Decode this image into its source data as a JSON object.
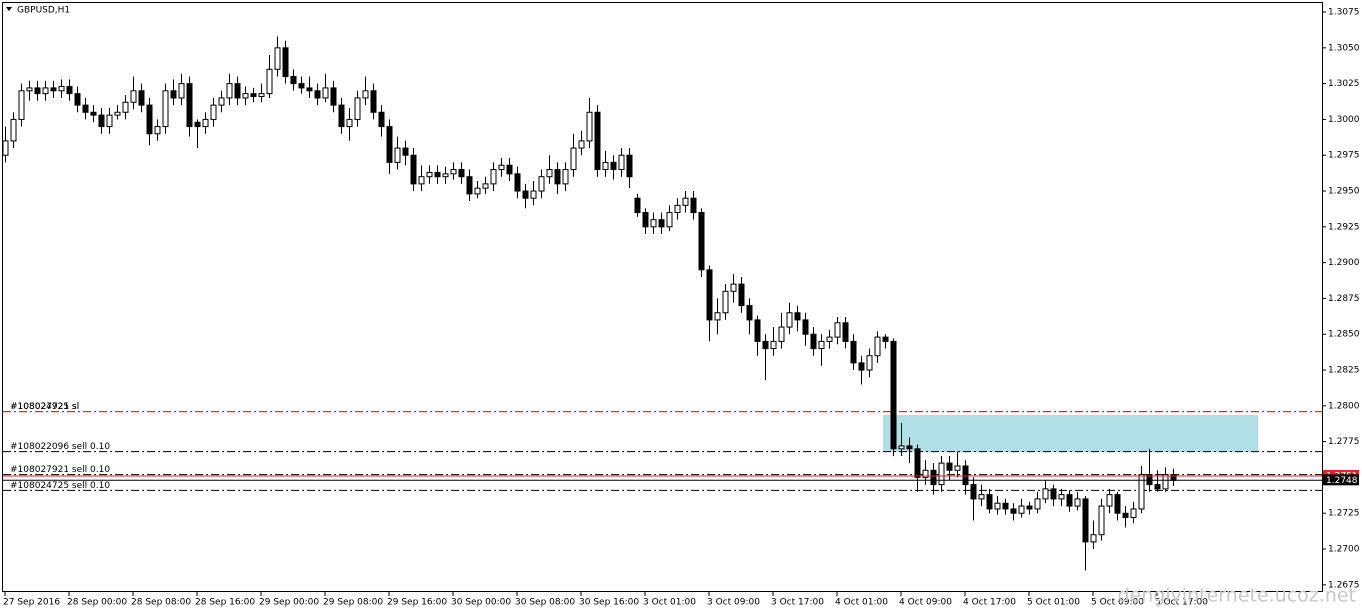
{
  "chart_data": {
    "type": "candlestick",
    "title": "GBPUSD,H1",
    "up_color": "#ffffff",
    "down_color": "#000000",
    "ylim": [
      1.267,
      1.3082
    ],
    "yticks": [
      1.3075,
      {
        "value": 1.305,
        "label": "1.3050"
      },
      1.3025,
      {
        "value": 1.3,
        "label": "1.3000"
      },
      1.2975,
      {
        "value": 1.295,
        "label": "1.2950"
      },
      1.2925,
      {
        "value": 1.29,
        "label": "1.2900"
      },
      1.2875,
      {
        "value": 1.285,
        "label": "1.2850"
      },
      1.2825,
      {
        "value": 1.28,
        "label": "1.2800"
      },
      1.2775,
      {
        "value": 1.275,
        "label": "1.2750"
      },
      1.2725,
      {
        "value": 1.27,
        "label": "1.2700"
      },
      1.2675
    ],
    "bid": 1.2748,
    "ask": 1.2751,
    "orders": [
      {
        "label": "#108027921 sl",
        "value": 1.2796,
        "color": "#e8202a"
      },
      {
        "label": "#108024725 sl",
        "value": 1.2796,
        "color": "#e8202a"
      },
      {
        "label": "#108022096 sell 0.10",
        "value": 1.2768,
        "color": "#000000"
      },
      {
        "label": "#108027921 sell 0.10",
        "value": 1.2752,
        "color": "#000000"
      },
      {
        "label": "#108024725 sell 0.10",
        "value": 1.2741,
        "color": "#000000"
      }
    ],
    "watermark": "dengivinternete.ucoz.net",
    "categories": [
      "27 Sep 2016",
      null,
      null,
      null,
      null,
      null,
      null,
      null,
      "28 Sep 00:00",
      null,
      null,
      null,
      null,
      null,
      null,
      null,
      "28 Sep 08:00",
      null,
      null,
      null,
      null,
      null,
      null,
      null,
      "28 Sep 16:00",
      null,
      null,
      null,
      null,
      null,
      null,
      null,
      "29 Sep 00:00",
      null,
      null,
      null,
      null,
      null,
      null,
      null,
      "29 Sep 08:00",
      null,
      null,
      null,
      null,
      null,
      null,
      null,
      "29 Sep 16:00",
      null,
      null,
      null,
      null,
      null,
      null,
      null,
      "30 Sep 00:00",
      null,
      null,
      null,
      null,
      null,
      null,
      null,
      "30 Sep 08:00",
      null,
      null,
      null,
      null,
      null,
      null,
      null,
      "30 Sep 16:00",
      null,
      null,
      null,
      null,
      null,
      null,
      null,
      "3 Oct 01:00",
      null,
      null,
      null,
      null,
      null,
      null,
      null,
      "3 Oct 09:00",
      null,
      null,
      null,
      null,
      null,
      null,
      null,
      "3 Oct 17:00",
      null,
      null,
      null,
      null,
      null,
      null,
      null,
      "4 Oct 01:00",
      null,
      null,
      null,
      null,
      null,
      null,
      null,
      "4 Oct 09:00",
      null,
      null,
      null,
      null,
      null,
      null,
      null,
      "4 Oct 17:00",
      null,
      null,
      null,
      null,
      null,
      null,
      null,
      "5 Oct 01:00",
      null,
      null,
      null,
      null,
      null,
      null,
      null,
      "5 Oct 09:00",
      null,
      null,
      null,
      null,
      null,
      null,
      null,
      "5 Oct 17:00",
      null,
      null
    ],
    "candles": [
      [
        1.2975,
        1.2995,
        1.297,
        1.2985
      ],
      [
        1.2985,
        1.3005,
        1.298,
        1.3
      ],
      [
        1.3,
        1.3025,
        1.2995,
        1.302
      ],
      [
        1.302,
        1.3027,
        1.3013,
        1.3022
      ],
      [
        1.3022,
        1.3027,
        1.3013,
        1.3018
      ],
      [
        1.3018,
        1.3027,
        1.3013,
        1.3022
      ],
      [
        1.3022,
        1.3027,
        1.3015,
        1.302
      ],
      [
        1.302,
        1.3028,
        1.3015,
        1.3023
      ],
      [
        1.3023,
        1.3028,
        1.3013,
        1.3018
      ],
      [
        1.3018,
        1.3023,
        1.3005,
        1.301
      ],
      [
        1.301,
        1.3015,
        1.3,
        1.3005
      ],
      [
        1.3005,
        1.301,
        1.2998,
        1.3003
      ],
      [
        1.3003,
        1.3008,
        1.299,
        1.2995
      ],
      [
        1.2995,
        1.3008,
        1.299,
        1.3003
      ],
      [
        1.3003,
        1.301,
        1.3,
        1.3005
      ],
      [
        1.3005,
        1.3017,
        1.3,
        1.3012
      ],
      [
        1.3012,
        1.303,
        1.3007,
        1.302
      ],
      [
        1.302,
        1.3025,
        1.3005,
        1.301
      ],
      [
        1.301,
        1.3015,
        1.2982,
        1.299
      ],
      [
        1.299,
        1.3,
        1.2985,
        1.2995
      ],
      [
        1.2995,
        1.3025,
        1.299,
        1.302
      ],
      [
        1.302,
        1.3028,
        1.301,
        1.3015
      ],
      [
        1.3015,
        1.3032,
        1.301,
        1.3025
      ],
      [
        1.3025,
        1.303,
        1.2988,
        1.2995
      ],
      [
        1.2998,
        1.3,
        1.298,
        1.2995
      ],
      [
        1.2995,
        1.3005,
        1.299,
        1.3
      ],
      [
        1.3,
        1.3015,
        1.2995,
        1.301
      ],
      [
        1.301,
        1.302,
        1.3005,
        1.3015
      ],
      [
        1.3015,
        1.3032,
        1.301,
        1.3025
      ],
      [
        1.3025,
        1.303,
        1.301,
        1.3015
      ],
      [
        1.3015,
        1.3023,
        1.301,
        1.3018
      ],
      [
        1.3018,
        1.3022,
        1.3012,
        1.3016
      ],
      [
        1.3016,
        1.3025,
        1.3012,
        1.3018
      ],
      [
        1.3018,
        1.3045,
        1.3015,
        1.3035
      ],
      [
        1.3035,
        1.3058,
        1.303,
        1.305
      ],
      [
        1.305,
        1.3055,
        1.3025,
        1.303
      ],
      [
        1.303,
        1.3035,
        1.302,
        1.3025
      ],
      [
        1.3025,
        1.303,
        1.3018,
        1.3022
      ],
      [
        1.3022,
        1.303,
        1.3015,
        1.302
      ],
      [
        1.302,
        1.3025,
        1.301,
        1.3015
      ],
      [
        1.3015,
        1.3032,
        1.3012,
        1.3022
      ],
      [
        1.3022,
        1.3027,
        1.3005,
        1.301
      ],
      [
        1.301,
        1.3015,
        1.299,
        1.2995
      ],
      [
        1.2995,
        1.3008,
        1.2985,
        1.3
      ],
      [
        1.3,
        1.302,
        1.2995,
        1.3015
      ],
      [
        1.3015,
        1.303,
        1.301,
        1.302
      ],
      [
        1.302,
        1.3025,
        1.3,
        1.3005
      ],
      [
        1.3005,
        1.301,
        1.2988,
        1.2995
      ],
      [
        1.2995,
        1.3,
        1.2962,
        1.297
      ],
      [
        1.297,
        1.2988,
        1.2965,
        1.298
      ],
      [
        1.298,
        1.2985,
        1.2968,
        1.2975
      ],
      [
        1.2975,
        1.298,
        1.295,
        1.2955
      ],
      [
        1.2955,
        1.2968,
        1.295,
        1.296
      ],
      [
        1.296,
        1.2968,
        1.2955,
        1.2963
      ],
      [
        1.2963,
        1.2968,
        1.2955,
        1.296
      ],
      [
        1.296,
        1.2967,
        1.2955,
        1.2962
      ],
      [
        1.2962,
        1.297,
        1.2958,
        1.2965
      ],
      [
        1.2965,
        1.297,
        1.2955,
        1.296
      ],
      [
        1.296,
        1.2965,
        1.2943,
        1.2948
      ],
      [
        1.2948,
        1.2957,
        1.2945,
        1.2952
      ],
      [
        1.2952,
        1.296,
        1.2948,
        1.2955
      ],
      [
        1.2955,
        1.297,
        1.295,
        1.2965
      ],
      [
        1.2965,
        1.2973,
        1.296,
        1.2968
      ],
      [
        1.2968,
        1.2973,
        1.2957,
        1.2962
      ],
      [
        1.2962,
        1.2967,
        1.2945,
        1.295
      ],
      [
        1.295,
        1.2955,
        1.2938,
        1.2945
      ],
      [
        1.2945,
        1.2957,
        1.294,
        1.295
      ],
      [
        1.295,
        1.2965,
        1.2945,
        1.296
      ],
      [
        1.296,
        1.2975,
        1.2955,
        1.2965
      ],
      [
        1.2965,
        1.297,
        1.2948,
        1.2955
      ],
      [
        1.2955,
        1.297,
        1.295,
        1.2965
      ],
      [
        1.2965,
        1.299,
        1.296,
        1.298
      ],
      [
        1.298,
        1.2992,
        1.2975,
        1.2985
      ],
      [
        1.2985,
        1.3015,
        1.298,
        1.3005
      ],
      [
        1.3005,
        1.301,
        1.296,
        1.2965
      ],
      [
        1.2965,
        1.2978,
        1.296,
        1.297
      ],
      [
        1.297,
        1.2975,
        1.2958,
        1.2965
      ],
      [
        1.2965,
        1.298,
        1.296,
        1.2975
      ],
      [
        1.2975,
        1.298,
        1.2952,
        1.296
      ],
      [
        1.2945,
        1.2948,
        1.2932,
        1.2935
      ],
      [
        1.2935,
        1.2938,
        1.292,
        1.2925
      ],
      [
        1.2925,
        1.2935,
        1.292,
        1.293
      ],
      [
        1.293,
        1.2935,
        1.292,
        1.2925
      ],
      [
        1.2925,
        1.294,
        1.2922,
        1.2935
      ],
      [
        1.2935,
        1.2945,
        1.293,
        1.294
      ],
      [
        1.294,
        1.295,
        1.2935,
        1.2945
      ],
      [
        1.2945,
        1.295,
        1.293,
        1.2935
      ],
      [
        1.2935,
        1.2938,
        1.289,
        1.2895
      ],
      [
        1.2895,
        1.2898,
        1.2845,
        1.286
      ],
      [
        1.286,
        1.2875,
        1.285,
        1.2865
      ],
      [
        1.2865,
        1.2885,
        1.286,
        1.288
      ],
      [
        1.288,
        1.2892,
        1.2872,
        1.2885
      ],
      [
        1.2885,
        1.289,
        1.2865,
        1.287
      ],
      [
        1.287,
        1.2875,
        1.285,
        1.286
      ],
      [
        1.286,
        1.2863,
        1.2835,
        1.2845
      ],
      [
        1.2845,
        1.285,
        1.2818,
        1.284
      ],
      [
        1.284,
        1.2855,
        1.2835,
        1.2845
      ],
      [
        1.2845,
        1.2865,
        1.284,
        1.2855
      ],
      [
        1.2855,
        1.2872,
        1.285,
        1.2865
      ],
      [
        1.2865,
        1.287,
        1.2852,
        1.286
      ],
      [
        1.286,
        1.2865,
        1.2842,
        1.285
      ],
      [
        1.285,
        1.2855,
        1.2835,
        1.284
      ],
      [
        1.284,
        1.285,
        1.2828,
        1.2845
      ],
      [
        1.2845,
        1.2853,
        1.284,
        1.2848
      ],
      [
        1.2848,
        1.2862,
        1.2843,
        1.2858
      ],
      [
        1.2858,
        1.2862,
        1.284,
        1.2845
      ],
      [
        1.2845,
        1.285,
        1.2825,
        1.283
      ],
      [
        1.283,
        1.2835,
        1.2815,
        1.2825
      ],
      [
        1.2825,
        1.284,
        1.282,
        1.2835
      ],
      [
        1.2835,
        1.2852,
        1.283,
        1.2848
      ],
      [
        1.2848,
        1.285,
        1.284,
        1.2845
      ],
      [
        1.2845,
        1.2847,
        1.2765,
        1.277
      ],
      [
        1.277,
        1.2788,
        1.2765,
        1.2772
      ],
      [
        1.2772,
        1.2778,
        1.276,
        1.277
      ],
      [
        1.277,
        1.2773,
        1.274,
        1.275
      ],
      [
        1.275,
        1.2762,
        1.2745,
        1.2755
      ],
      [
        1.2755,
        1.276,
        1.2738,
        1.2745
      ],
      [
        1.2745,
        1.2765,
        1.274,
        1.276
      ],
      [
        1.276,
        1.2765,
        1.2748,
        1.2755
      ],
      [
        1.2755,
        1.2768,
        1.275,
        1.2758
      ],
      [
        1.2758,
        1.2762,
        1.2738,
        1.2745
      ],
      [
        1.2745,
        1.275,
        1.272,
        1.2735
      ],
      [
        1.2735,
        1.2745,
        1.273,
        1.2738
      ],
      [
        1.2738,
        1.2742,
        1.2725,
        1.2728
      ],
      [
        1.2728,
        1.2737,
        1.2724,
        1.2732
      ],
      [
        1.2732,
        1.2735,
        1.2724,
        1.2728
      ],
      [
        1.2728,
        1.2732,
        1.272,
        1.2725
      ],
      [
        1.2725,
        1.2735,
        1.2722,
        1.273
      ],
      [
        1.273,
        1.2733,
        1.2724,
        1.2728
      ],
      [
        1.2728,
        1.274,
        1.2725,
        1.2735
      ],
      [
        1.2735,
        1.2748,
        1.2732,
        1.2742
      ],
      [
        1.2742,
        1.2745,
        1.273,
        1.2735
      ],
      [
        1.2735,
        1.2742,
        1.273,
        1.2738
      ],
      [
        1.2738,
        1.2741,
        1.2726,
        1.273
      ],
      [
        1.273,
        1.274,
        1.2727,
        1.2735
      ],
      [
        1.2735,
        1.2737,
        1.2685,
        1.2705
      ],
      [
        1.2705,
        1.272,
        1.27,
        1.271
      ],
      [
        1.271,
        1.2735,
        1.2706,
        1.273
      ],
      [
        1.273,
        1.2742,
        1.2725,
        1.2738
      ],
      [
        1.2738,
        1.274,
        1.272,
        1.2725
      ],
      [
        1.2725,
        1.273,
        1.2715,
        1.2722
      ],
      [
        1.2722,
        1.2733,
        1.2718,
        1.2728
      ],
      [
        1.2728,
        1.2758,
        1.2725,
        1.2752
      ],
      [
        1.2752,
        1.277,
        1.274,
        1.2745
      ],
      [
        1.2745,
        1.2755,
        1.274,
        1.2742
      ],
      [
        1.2742,
        1.2757,
        1.274,
        1.2752
      ],
      [
        1.2752,
        1.2756,
        1.2744,
        1.2748
      ]
    ]
  }
}
